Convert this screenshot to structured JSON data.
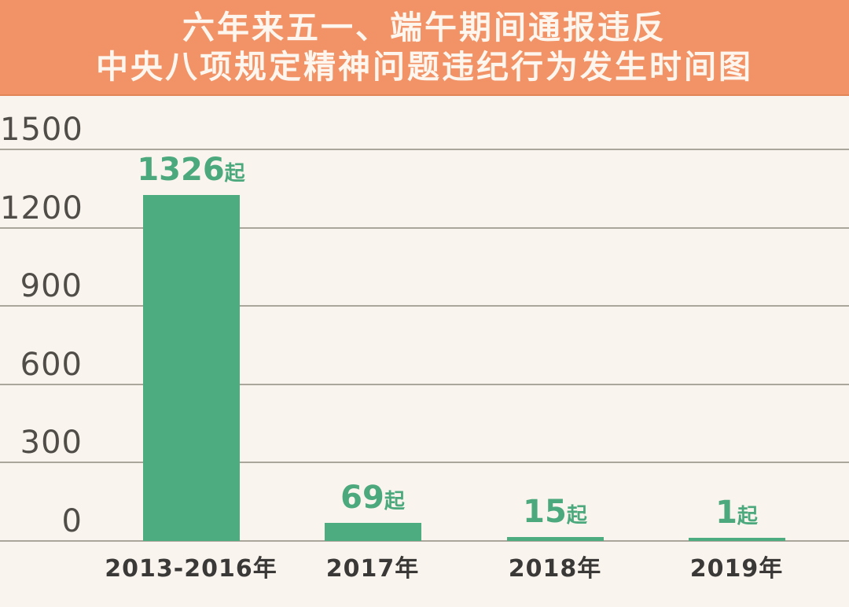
{
  "header": {
    "title_line1": "六年来五一、端午期间通报违反",
    "title_line2": "中央八项规定精神问题违纪行为发生时间图",
    "bg_color": "#F19366",
    "text_color": "#FDF6EE"
  },
  "chart_data": {
    "type": "bar",
    "title": "六年来五一、端午期间通报违反中央八项规定精神问题违纪行为发生时间图",
    "categories": [
      "2013-2016年",
      "2017年",
      "2018年",
      "2019年"
    ],
    "values": [
      1326,
      69,
      15,
      1
    ],
    "value_label_suffix": "起",
    "value_labels": [
      "1326起",
      "69起",
      "15起",
      "1起"
    ],
    "y_ticks": [
      0,
      300,
      600,
      900,
      1200,
      1500
    ],
    "ylim": [
      0,
      1500
    ],
    "xlabel": "",
    "ylabel": "",
    "grid": true,
    "legend": "none",
    "colors": {
      "bar": "#4DAD80",
      "value_label": "#4BA97D",
      "gridline": "#ABA69C",
      "y_tick_text": "#504D48",
      "x_tick_text": "#3B3937",
      "plot_background": "#FAF4EE"
    }
  }
}
